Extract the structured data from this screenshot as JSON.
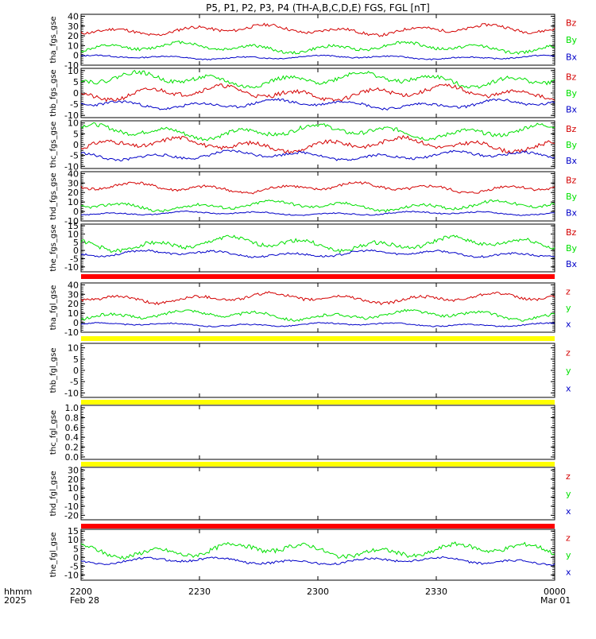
{
  "title": "P5, P1, P2, P3, P4 (TH-A,B,C,D,E) FGS, FGL [nT]",
  "colors": {
    "x": "#0000c8",
    "y": "#00e000",
    "z": "#d40000",
    "red_bar": "#ff0000",
    "yellow_bar": "#ffff00"
  },
  "footer": {
    "hhmm": "hhmm",
    "year": "2025",
    "start_date": "Feb 28",
    "end_date": "Mar 01"
  },
  "chart_data": {
    "type": "line",
    "x_ticks": [
      "2200",
      "2230",
      "2300",
      "2330",
      "0000"
    ],
    "panels": [
      {
        "ylabel": "tha_fgs_gse",
        "ticks": [
          "40",
          "30",
          "20",
          "10",
          "0",
          "-10"
        ],
        "ylim": [
          -10,
          42
        ],
        "has_data": true,
        "legend": [
          "Bz",
          "By",
          "Bx"
        ],
        "series": [
          {
            "name": "Bz",
            "component": "z",
            "base": 26,
            "amp": 5,
            "seed": 11
          },
          {
            "name": "By",
            "component": "y",
            "base": 8,
            "amp": 5,
            "seed": 12
          },
          {
            "name": "Bx",
            "component": "x",
            "base": -2,
            "amp": 2,
            "seed": 13
          }
        ]
      },
      {
        "ylabel": "thb_fgs_gse",
        "ticks": [
          "10",
          "5",
          "0",
          "-5",
          "-10"
        ],
        "ylim": [
          -11,
          11
        ],
        "has_data": true,
        "legend": [
          "Bz",
          "By",
          "Bx"
        ],
        "series": [
          {
            "name": "Bz",
            "component": "z",
            "base": 0,
            "amp": 3,
            "seed": 21
          },
          {
            "name": "By",
            "component": "y",
            "base": 6,
            "amp": 3,
            "seed": 22
          },
          {
            "name": "Bx",
            "component": "x",
            "base": -5,
            "amp": 2,
            "seed": 23
          }
        ]
      },
      {
        "ylabel": "thc_fgs_gse",
        "ticks": [
          "10",
          "5",
          "0",
          "-5",
          "-10"
        ],
        "ylim": [
          -11,
          11
        ],
        "has_data": true,
        "legend": [
          "Bz",
          "By",
          "Bx"
        ],
        "series": [
          {
            "name": "Bz",
            "component": "z",
            "base": 0,
            "amp": 3,
            "seed": 31
          },
          {
            "name": "By",
            "component": "y",
            "base": 6,
            "amp": 3,
            "seed": 32
          },
          {
            "name": "Bx",
            "component": "x",
            "base": -5,
            "amp": 2,
            "seed": 33
          }
        ]
      },
      {
        "ylabel": "thd_fgs_gse",
        "ticks": [
          "40",
          "30",
          "20",
          "10",
          "0",
          "-10"
        ],
        "ylim": [
          -10,
          42
        ],
        "has_data": true,
        "legend": [
          "Bz",
          "By",
          "Bx"
        ],
        "series": [
          {
            "name": "Bz",
            "component": "z",
            "base": 25,
            "amp": 5,
            "seed": 41
          },
          {
            "name": "By",
            "component": "y",
            "base": 6,
            "amp": 5,
            "seed": 42
          },
          {
            "name": "Bx",
            "component": "x",
            "base": -2,
            "amp": 2,
            "seed": 43
          }
        ]
      },
      {
        "ylabel": "the_fgs_gse",
        "ticks": [
          "15",
          "10",
          "5",
          "0",
          "-5",
          "-10"
        ],
        "ylim": [
          -13,
          16
        ],
        "has_data": true,
        "legend": [
          "Bz",
          "By",
          "Bx"
        ],
        "series": [
          {
            "name": "By",
            "component": "y",
            "base": 4,
            "amp": 4,
            "seed": 52
          },
          {
            "name": "Bx",
            "component": "x",
            "base": -2,
            "amp": 2,
            "seed": 53
          }
        ]
      },
      {
        "ylabel": "tha_fgl_gse",
        "ticks": [
          "40",
          "30",
          "20",
          "10",
          "0",
          "-10"
        ],
        "ylim": [
          -10,
          42
        ],
        "has_data": true,
        "legend": [
          "z",
          "y",
          "x"
        ],
        "series": [
          {
            "name": "z",
            "component": "z",
            "base": 26,
            "amp": 5,
            "seed": 61
          },
          {
            "name": "y",
            "component": "y",
            "base": 8,
            "amp": 5,
            "seed": 62
          },
          {
            "name": "x",
            "component": "x",
            "base": -2,
            "amp": 2,
            "seed": 63
          }
        ]
      },
      {
        "ylabel": "thb_fgl_gse",
        "ticks": [
          "10",
          "5",
          "0",
          "-5",
          "-10"
        ],
        "ylim": [
          -12,
          12
        ],
        "has_data": false,
        "legend": [
          "z",
          "y",
          "x"
        ],
        "series": []
      },
      {
        "ylabel": "thc_fgl_gse",
        "ticks": [
          "1.0",
          "0.8",
          "0.6",
          "0.4",
          "0.2",
          "0.0"
        ],
        "ylim": [
          -0.05,
          1.05
        ],
        "has_data": false,
        "legend": [],
        "series": []
      },
      {
        "ylabel": "thd_fgl_gse",
        "ticks": [
          "30",
          "20",
          "10",
          "0",
          "-10",
          "-20"
        ],
        "ylim": [
          -25,
          33
        ],
        "has_data": false,
        "legend": [
          "z",
          "y",
          "x"
        ],
        "series": []
      },
      {
        "ylabel": "the_fgl_gse",
        "ticks": [
          "15",
          "10",
          "5",
          "0",
          "-5",
          "-10"
        ],
        "ylim": [
          -13,
          16
        ],
        "has_data": true,
        "legend": [
          "z",
          "y",
          "x"
        ],
        "series": [
          {
            "name": "y",
            "component": "y",
            "base": 4,
            "amp": 4,
            "seed": 102
          },
          {
            "name": "x",
            "component": "x",
            "base": -2,
            "amp": 2,
            "seed": 103
          }
        ]
      }
    ],
    "separator_bars": [
      {
        "color": "red",
        "after_panel": 4
      },
      {
        "color": "yellow",
        "after_panel": 5
      },
      {
        "color": "yellow",
        "after_panel": 6
      },
      {
        "color": "yellow",
        "after_panel": 7
      },
      {
        "color": "red",
        "after_panel": 8
      }
    ]
  }
}
